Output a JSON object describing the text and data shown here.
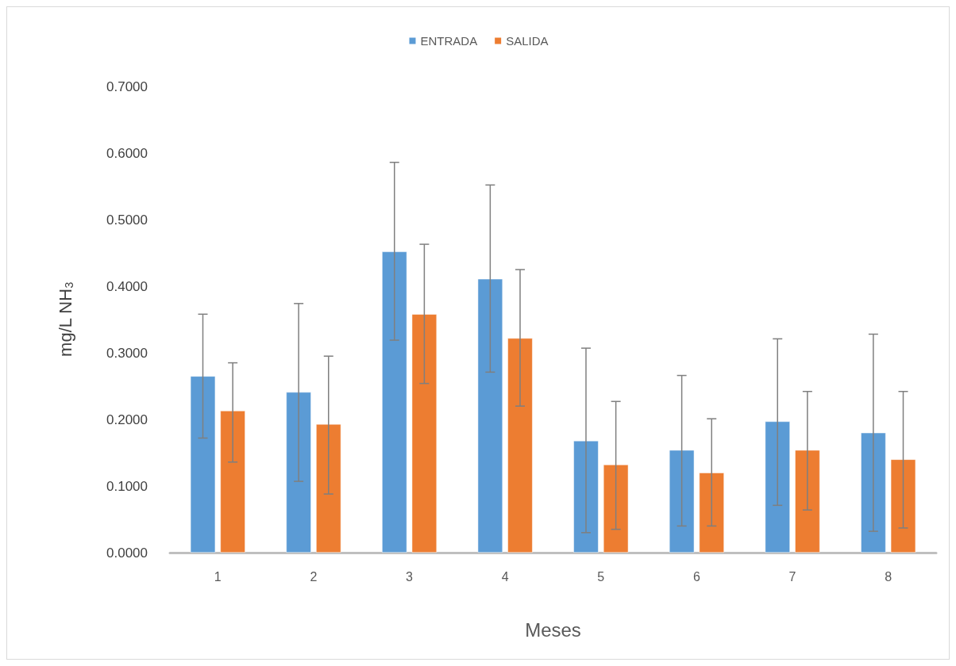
{
  "chart_data": {
    "type": "bar",
    "xlabel": "Meses",
    "ylabel": "mg/L NH$_{3}$",
    "categories": [
      "1",
      "2",
      "3",
      "4",
      "5",
      "6",
      "7",
      "8"
    ],
    "series": [
      {
        "name": "ENTRADA",
        "color": "#5b9bd5",
        "values": [
          0.265,
          0.241,
          0.452,
          0.411,
          0.168,
          0.154,
          0.197,
          0.18
        ],
        "errors": [
          [
            0.172,
            0.358
          ],
          [
            0.107,
            0.374
          ],
          [
            0.319,
            0.586
          ],
          [
            0.271,
            0.552
          ],
          [
            0.03,
            0.307
          ],
          [
            0.04,
            0.266
          ],
          [
            0.071,
            0.321
          ],
          [
            0.032,
            0.328
          ]
        ]
      },
      {
        "name": "SALIDA",
        "color": "#ed7d31",
        "values": [
          0.213,
          0.193,
          0.358,
          0.322,
          0.132,
          0.12,
          0.154,
          0.14
        ],
        "errors": [
          [
            0.136,
            0.285
          ],
          [
            0.088,
            0.295
          ],
          [
            0.254,
            0.463
          ],
          [
            0.22,
            0.425
          ],
          [
            0.035,
            0.227
          ],
          [
            0.04,
            0.201
          ],
          [
            0.064,
            0.242
          ],
          [
            0.037,
            0.242
          ]
        ]
      }
    ],
    "ylim": [
      0,
      0.7
    ],
    "yticks": [
      {
        "value": 0,
        "label": "0.0000"
      },
      {
        "value": 0.1,
        "label": "0.1000"
      },
      {
        "value": 0.2,
        "label": "0.2000"
      },
      {
        "value": 0.3,
        "label": "0.3000"
      },
      {
        "value": 0.4,
        "label": "0.4000"
      },
      {
        "value": 0.5,
        "label": "0.5000"
      },
      {
        "value": 0.6,
        "label": "0.6000"
      },
      {
        "value": 0.7,
        "label": "0.7000"
      }
    ],
    "grid": false,
    "legend": "top"
  }
}
